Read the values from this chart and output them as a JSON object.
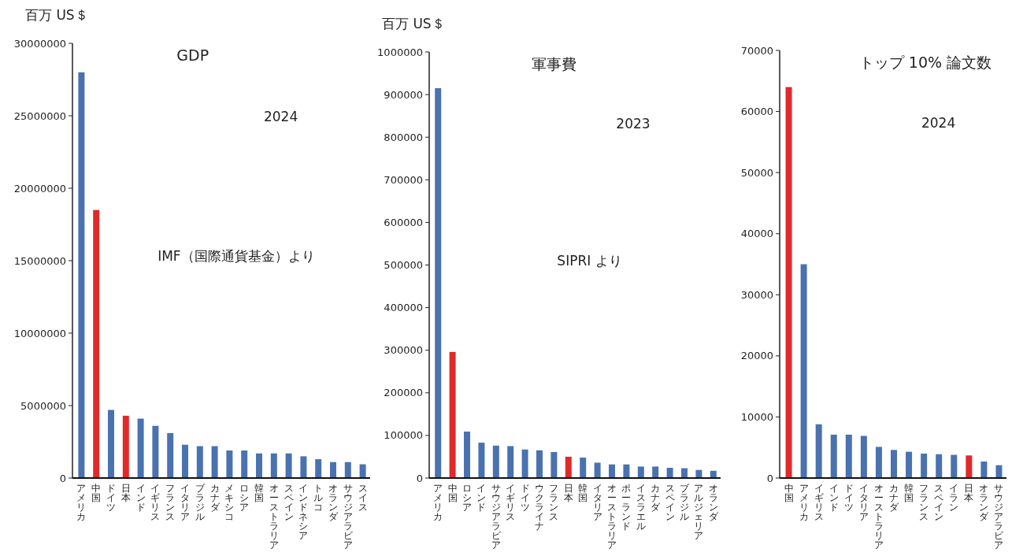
{
  "chart_data": [
    {
      "type": "bar",
      "title": "GDP",
      "ylabel": "百万 US＄",
      "annotations": [
        "2024",
        "IMF（国際通貨基金）より"
      ],
      "categories": [
        "アメリカ",
        "中国",
        "ドイツ",
        "日本",
        "インド",
        "イギリス",
        "フランス",
        "イタリア",
        "ブラジル",
        "カナダ",
        "メキシコ",
        "ロシア",
        "韓国",
        "オーストラリア",
        "スペイン",
        "インドネシア",
        "トルコ",
        "オランダ",
        "サウジアラビア",
        "スイス"
      ],
      "values": [
        28000000,
        18500000,
        4700000,
        4300000,
        4100000,
        3600000,
        3100000,
        2300000,
        2200000,
        2200000,
        1900000,
        1900000,
        1700000,
        1700000,
        1700000,
        1500000,
        1300000,
        1100000,
        1100000,
        950000
      ],
      "colors": [
        "#4a72b0",
        "#e02a2a",
        "#4a72b0",
        "#e02a2a",
        "#4a72b0",
        "#4a72b0",
        "#4a72b0",
        "#4a72b0",
        "#4a72b0",
        "#4a72b0",
        "#4a72b0",
        "#4a72b0",
        "#4a72b0",
        "#4a72b0",
        "#4a72b0",
        "#4a72b0",
        "#4a72b0",
        "#4a72b0",
        "#4a72b0",
        "#4a72b0"
      ],
      "ylim": [
        0,
        30000000
      ],
      "yticks": [
        0,
        5000000,
        10000000,
        15000000,
        20000000,
        25000000,
        30000000
      ]
    },
    {
      "type": "bar",
      "title": "軍事費",
      "ylabel": "百万 US＄",
      "annotations": [
        "2023",
        "SIPRI より"
      ],
      "categories": [
        "アメリカ",
        "中国",
        "ロシア",
        "インド",
        "サウジアラビア",
        "イギリス",
        "ドイツ",
        "ウクライナ",
        "フランス",
        "日本",
        "韓国",
        "イタリア",
        "オーストラリア",
        "ポーランド",
        "イスラエル",
        "カナダ",
        "スペイン",
        "ブラジル",
        "アルジェリア",
        "オランダ"
      ],
      "values": [
        915000,
        296000,
        109000,
        83000,
        76000,
        75000,
        67000,
        65000,
        61000,
        50000,
        48000,
        36000,
        32000,
        32000,
        27000,
        27000,
        24000,
        23000,
        19000,
        17000
      ],
      "colors": [
        "#4a72b0",
        "#e02a2a",
        "#4a72b0",
        "#4a72b0",
        "#4a72b0",
        "#4a72b0",
        "#4a72b0",
        "#4a72b0",
        "#4a72b0",
        "#e02a2a",
        "#4a72b0",
        "#4a72b0",
        "#4a72b0",
        "#4a72b0",
        "#4a72b0",
        "#4a72b0",
        "#4a72b0",
        "#4a72b0",
        "#4a72b0",
        "#4a72b0"
      ],
      "ylim": [
        0,
        1000000
      ],
      "yticks": [
        0,
        100000,
        200000,
        300000,
        400000,
        500000,
        600000,
        700000,
        800000,
        900000,
        1000000
      ]
    },
    {
      "type": "bar",
      "title": "トップ 10% 論文数",
      "annotations": [
        "2024"
      ],
      "categories": [
        "中国",
        "アメリカ",
        "イギリス",
        "インド",
        "ドイツ",
        "イタリア",
        "オーストラリア",
        "カナダ",
        "韓国",
        "フランス",
        "スペイン",
        "イラン",
        "日本",
        "オランダ",
        "サウジアラビア"
      ],
      "values": [
        64000,
        35000,
        8800,
        7100,
        7100,
        6900,
        5100,
        4600,
        4300,
        4000,
        3900,
        3800,
        3700,
        2700,
        2100
      ],
      "colors": [
        "#e02a2a",
        "#4a72b0",
        "#4a72b0",
        "#4a72b0",
        "#4a72b0",
        "#4a72b0",
        "#4a72b0",
        "#4a72b0",
        "#4a72b0",
        "#4a72b0",
        "#4a72b0",
        "#4a72b0",
        "#e02a2a",
        "#4a72b0",
        "#4a72b0"
      ],
      "ylim": [
        0,
        70000
      ],
      "yticks": [
        0,
        10000,
        20000,
        30000,
        40000,
        50000,
        60000,
        70000
      ]
    }
  ]
}
